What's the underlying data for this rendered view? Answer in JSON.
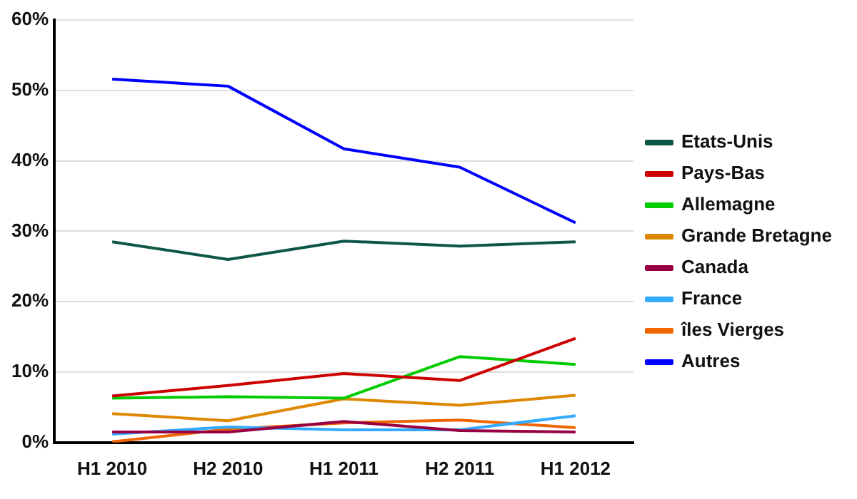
{
  "chart_data": {
    "type": "line",
    "categories": [
      "H1 2010",
      "H2 2010",
      "H1 2011",
      "H2 2011",
      "H1 2012"
    ],
    "series": [
      {
        "name": "Etats-Unis",
        "color": "#0f5646",
        "values": [
          28.5,
          26.0,
          28.6,
          27.9,
          28.5
        ]
      },
      {
        "name": "Pays-Bas",
        "color": "#cc0000",
        "values": [
          6.6,
          8.1,
          9.8,
          8.8,
          14.8
        ]
      },
      {
        "name": "Allemagne",
        "color": "#00cc00",
        "values": [
          6.3,
          6.5,
          6.3,
          12.2,
          11.1
        ]
      },
      {
        "name": "Grande Bretagne",
        "color": "#dd8800",
        "values": [
          4.1,
          3.1,
          6.2,
          5.3,
          6.7
        ]
      },
      {
        "name": "Canada",
        "color": "#990044",
        "values": [
          1.5,
          1.5,
          3.0,
          1.7,
          1.5
        ]
      },
      {
        "name": "France",
        "color": "#33aaff",
        "values": [
          1.2,
          2.2,
          1.8,
          1.8,
          3.8
        ]
      },
      {
        "name": "îles Vierges",
        "color": "#ee6600",
        "values": [
          0.1,
          1.9,
          2.8,
          3.2,
          2.1
        ]
      },
      {
        "name": "Autres",
        "color": "#0000ff",
        "values": [
          51.6,
          50.6,
          41.7,
          39.1,
          31.2
        ]
      }
    ],
    "ylim": [
      0,
      60
    ],
    "yticks": [
      {
        "value": 0,
        "label": "0%"
      },
      {
        "value": 10,
        "label": "10%"
      },
      {
        "value": 20,
        "label": "20%"
      },
      {
        "value": 30,
        "label": "30%"
      },
      {
        "value": 40,
        "label": "40%"
      },
      {
        "value": 50,
        "label": "50%"
      },
      {
        "value": 60,
        "label": "60%"
      }
    ],
    "grid": "y",
    "legend": "right",
    "marker": "none",
    "line_style": "solid"
  }
}
